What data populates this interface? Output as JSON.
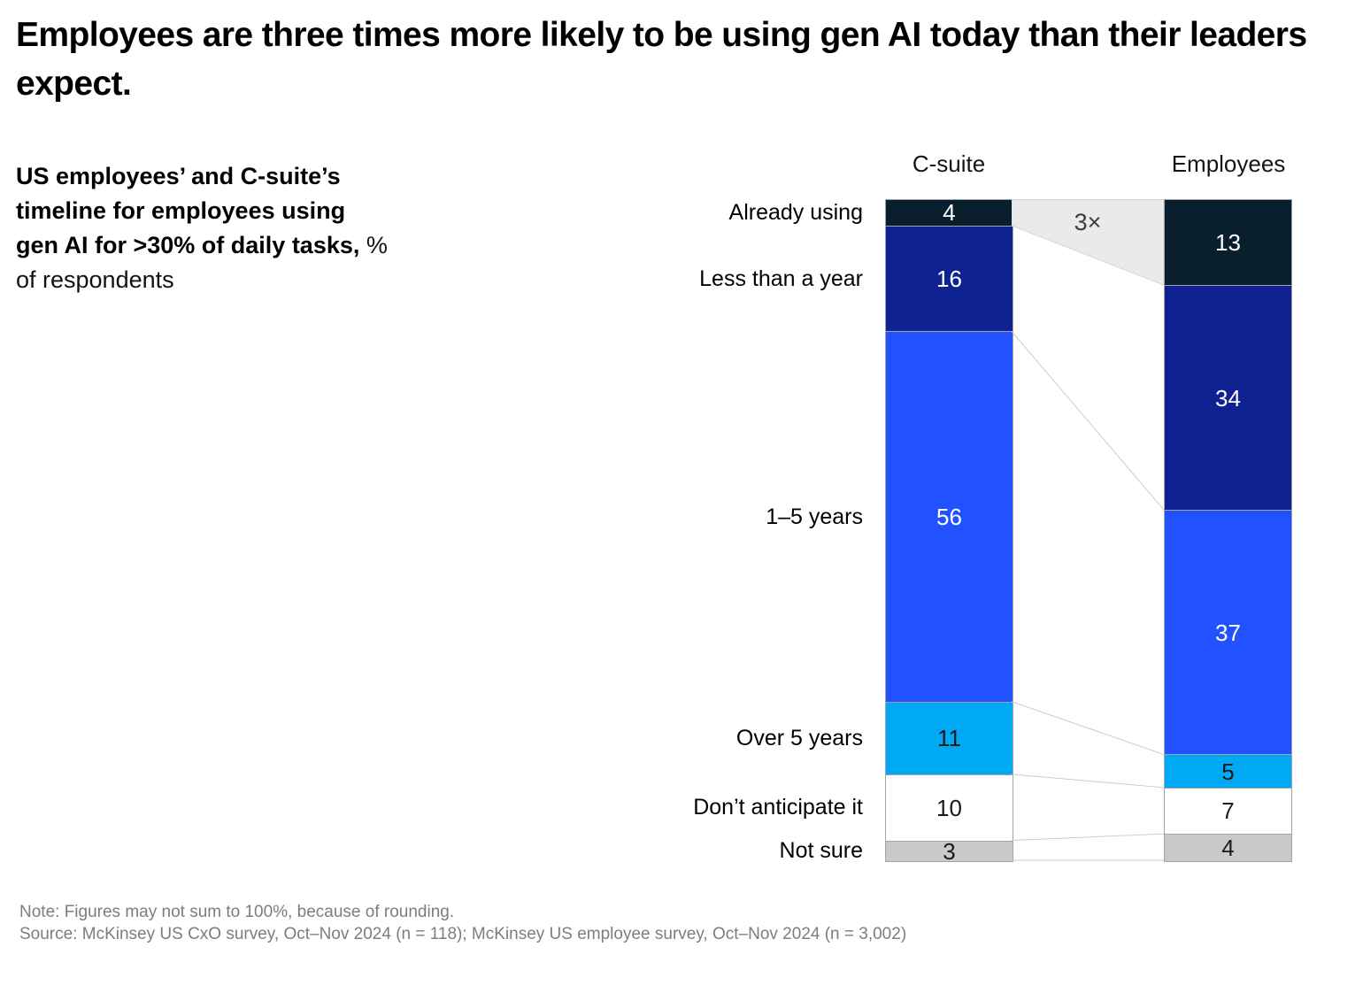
{
  "header": {
    "title": "Employees are three times more likely to be using gen AI today than their leaders expect."
  },
  "subtitle": {
    "lines": [
      {
        "bold": "US employees’ and C-suite’s",
        "regular": ""
      },
      {
        "bold": "timeline for employees using",
        "regular": ""
      },
      {
        "bold": "gen AI for >30% of daily tasks,",
        "regular": " %"
      },
      {
        "bold": "",
        "regular": "of respondents"
      }
    ]
  },
  "chart_data": {
    "type": "bar",
    "variant": "stacked-100-percent-column-pair",
    "title": "US employees’ and C-suite’s timeline for employees using gen AI for >30% of daily tasks, % of respondents",
    "categories": [
      "Already using",
      "Less than a year",
      "1–5 years",
      "Over 5 years",
      "Don’t anticipate it",
      "Not sure"
    ],
    "series": [
      {
        "name": "C-suite",
        "values": [
          4,
          16,
          56,
          11,
          10,
          3
        ]
      },
      {
        "name": "Employees",
        "values": [
          13,
          34,
          37,
          5,
          7,
          4
        ]
      }
    ],
    "annotation": "3×",
    "ylim": [
      0,
      100
    ],
    "legend_position": "none",
    "grid": false,
    "style": {
      "segment_colors": [
        "#0a1f2d",
        "#0e2291",
        "#2251ff",
        "#00a9f4",
        "#ffffff",
        "#c9c9c9"
      ],
      "value_text_colors": [
        "#ffffff",
        "#ffffff",
        "#ffffff",
        "#1a1a1a",
        "#1a1a1a",
        "#1a1a1a"
      ],
      "band_fill": "#eaeaea",
      "band_stroke": "#d6d6d6",
      "connector_line": "#cccccc",
      "bar_border": "#a3a3a3"
    }
  },
  "footer": {
    "note": "Note: Figures may not sum to 100%, because of rounding.",
    "source": "Source: McKinsey US CxO survey, Oct–Nov 2024 (n = 118); McKinsey US employee survey, Oct–Nov 2024 (n = 3,002)"
  }
}
